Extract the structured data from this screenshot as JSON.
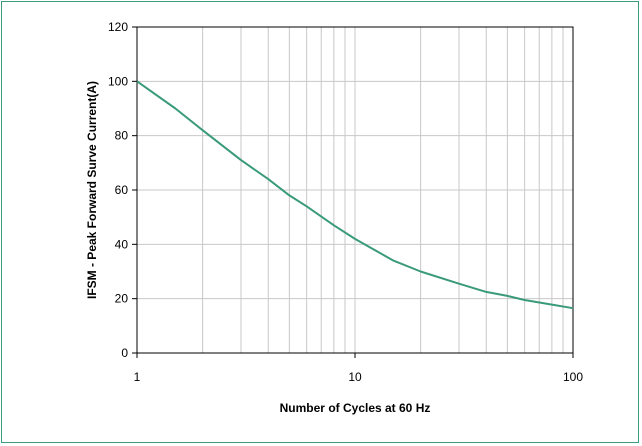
{
  "chart_data": {
    "type": "line",
    "title": "",
    "xlabel": "Number of Cycles  at 60  Hz",
    "ylabel": "IFSM - Peak  Forward Surve Current(A)",
    "xscale": "log",
    "xlim": [
      1,
      100
    ],
    "ylim": [
      0,
      120
    ],
    "x_ticks": [
      1,
      10,
      100
    ],
    "x_tick_labels": [
      "1",
      "10",
      "100"
    ],
    "y_ticks": [
      0,
      20,
      40,
      60,
      80,
      100,
      120
    ],
    "y_tick_labels": [
      "0",
      "20",
      "40",
      "60",
      "80",
      "100",
      "120"
    ],
    "grid": true,
    "legend": "none",
    "series": [
      {
        "color": "#3a9a7c",
        "x": [
          1,
          1.5,
          2,
          3,
          4,
          5,
          6,
          8,
          10,
          15,
          20,
          30,
          40,
          50,
          60,
          80,
          100
        ],
        "y": [
          100,
          90,
          82,
          71,
          64,
          58,
          54,
          47,
          42,
          34,
          30,
          25.5,
          22.5,
          21,
          19.5,
          17.8,
          16.5
        ]
      }
    ]
  }
}
